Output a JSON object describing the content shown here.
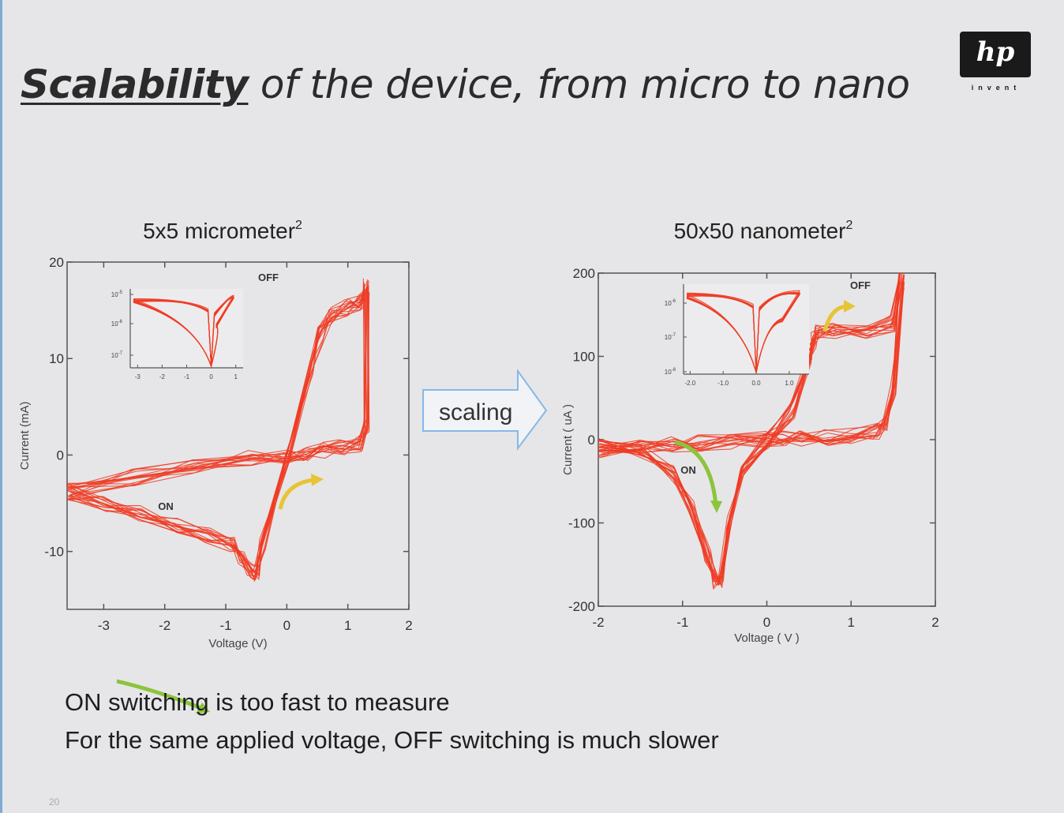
{
  "slide": {
    "title_emphasis": "Scalability",
    "title_rest": " of the device, from micro to nano",
    "page_number": "20",
    "captions": [
      "ON switching is too fast to measure",
      "For the same applied voltage, OFF switching is much slower"
    ]
  },
  "logo": {
    "mark": "hp",
    "tagline": "invent"
  },
  "scaling_label": "scaling",
  "colors": {
    "data": "#ee3c24",
    "on_arrow": "#8cc43c",
    "off_arrow": "#e7c436",
    "background": "#e6e6e8",
    "arrow_outline": "#86b8e6"
  },
  "chart_data": [
    {
      "type": "line",
      "title": "5x5 micrometer",
      "title_sup": "2",
      "xlabel": "Voltage (V)",
      "ylabel": "Current (mA)",
      "xlim": [
        -3.6,
        2
      ],
      "ylim": [
        -16,
        20
      ],
      "xticks": [
        -3,
        -2,
        -1,
        0,
        1,
        2
      ],
      "yticks": [
        -10,
        0,
        10,
        20
      ],
      "annotations": [
        "ON",
        "OFF"
      ],
      "series": [
        {
          "x": [
            -3.6,
            -3.0,
            -2.4,
            -1.8,
            -1.3,
            -0.9,
            -0.75,
            -0.6,
            -0.5,
            -0.4,
            0.0,
            0.4,
            0.55,
            0.7,
            1.0,
            1.2,
            1.3
          ],
          "y": [
            -3.8,
            -5.0,
            -6.0,
            -7.2,
            -8.3,
            -9.2,
            -10.5,
            -12.0,
            -12.3,
            -9.0,
            0.0,
            9.0,
            12.5,
            14.5,
            15.3,
            15.8,
            17.0
          ]
        },
        {
          "x": [
            1.3,
            1.3,
            1.2,
            0.9,
            0.6,
            0.3,
            0.0,
            -0.6,
            -1.5,
            -2.5,
            -3.6
          ],
          "y": [
            17.5,
            3.0,
            1.2,
            0.8,
            0.5,
            0.2,
            0.0,
            -0.3,
            -1.2,
            -2.3,
            -3.8
          ]
        }
      ],
      "inset": {
        "xticks": [
          -3,
          -2,
          -1,
          0,
          1
        ],
        "ytick_labels": [
          "10",
          "10",
          "10"
        ],
        "ytick_exponents": [
          "-5",
          "-6",
          "-7"
        ]
      }
    },
    {
      "type": "line",
      "title": "50x50 nanometer",
      "title_sup": "2",
      "xlabel": "Voltage ( V )",
      "ylabel": "Current ( uA )",
      "xlim": [
        -2,
        2
      ],
      "ylim": [
        -200,
        200
      ],
      "xticks": [
        -2,
        -1,
        0,
        1,
        2
      ],
      "yticks": [
        -200,
        -100,
        0,
        100,
        200
      ],
      "annotations": [
        "ON",
        "OFF"
      ],
      "series": [
        {
          "x": [
            -2.0,
            -1.5,
            -1.1,
            -0.9,
            -0.7,
            -0.6,
            -0.55,
            -0.45,
            -0.3,
            0.0,
            0.3,
            0.5,
            0.55,
            0.6,
            0.8,
            1.2,
            1.5,
            1.6
          ],
          "y": [
            -8,
            -12,
            -40,
            -80,
            -140,
            -170,
            -168,
            -100,
            -40,
            0,
            35,
            100,
            120,
            128,
            130,
            130,
            140,
            200
          ]
        },
        {
          "x": [
            1.6,
            1.5,
            1.4,
            1.3,
            1.0,
            0.7,
            0.4,
            0.2,
            0.0,
            -0.4,
            -0.8,
            -1.1,
            -1.5,
            -2.0
          ],
          "y": [
            190,
            60,
            20,
            10,
            5,
            3,
            2,
            1,
            0,
            -2,
            -4,
            -6,
            -8,
            -12
          ]
        }
      ],
      "inset": {
        "xticks": [
          "-2.0",
          "-1.0",
          "0.0",
          "1.0"
        ],
        "ytick_labels": [
          "10",
          "10",
          "10"
        ],
        "ytick_exponents": [
          "-6",
          "-7",
          "-8"
        ]
      }
    }
  ]
}
